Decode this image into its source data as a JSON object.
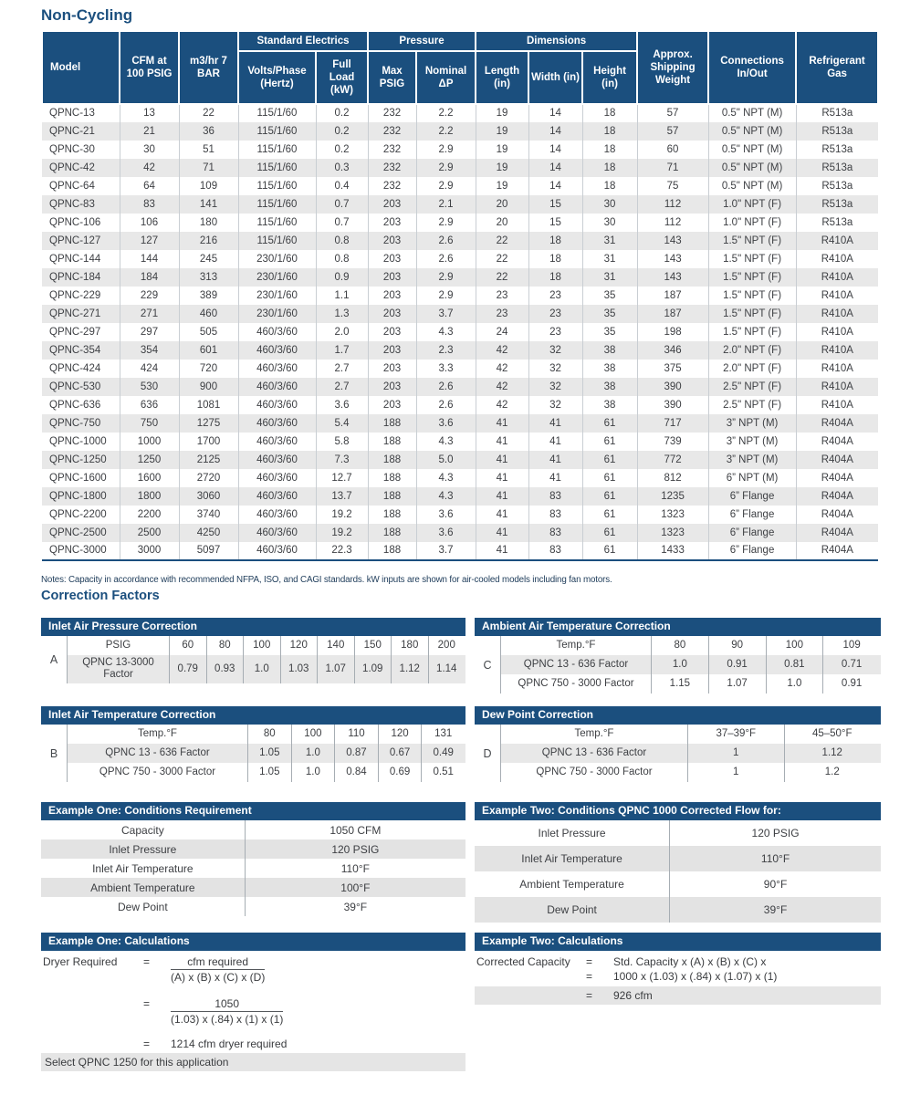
{
  "colors": {
    "navy": "#1b4f7e",
    "stripe": "#e8e8e8",
    "text": "#3e4044"
  },
  "page": {
    "title": "Non-Cycling",
    "correction_heading": "Correction Factors"
  },
  "main_table": {
    "column_groups": [
      {
        "label": "Standard Electrics"
      },
      {
        "label": "Pressure"
      },
      {
        "label": "Dimensions"
      }
    ],
    "columns": [
      "Model",
      "CFM at 100 PSIG",
      "m3/hr 7 BAR",
      "Volts/Phase (Hertz)",
      "Full Load (kW)",
      "Max PSIG",
      "Nominal ΔP",
      "Length (in)",
      "Width (in)",
      "Height (in)",
      "Approx. Shipping Weight",
      "Connections In/Out",
      "Refrigerant Gas"
    ],
    "rows": [
      [
        "QPNC-13",
        "13",
        "22",
        "115/1/60",
        "0.2",
        "232",
        "2.2",
        "19",
        "14",
        "18",
        "57",
        "0.5\" NPT (M)",
        "R513a"
      ],
      [
        "QPNC-21",
        "21",
        "36",
        "115/1/60",
        "0.2",
        "232",
        "2.2",
        "19",
        "14",
        "18",
        "57",
        "0.5\" NPT (M)",
        "R513a"
      ],
      [
        "QPNC-30",
        "30",
        "51",
        "115/1/60",
        "0.2",
        "232",
        "2.9",
        "19",
        "14",
        "18",
        "60",
        "0.5\" NPT (M)",
        "R513a"
      ],
      [
        "QPNC-42",
        "42",
        "71",
        "115/1/60",
        "0.3",
        "232",
        "2.9",
        "19",
        "14",
        "18",
        "71",
        "0.5\" NPT (M)",
        "R513a"
      ],
      [
        "QPNC-64",
        "64",
        "109",
        "115/1/60",
        "0.4",
        "232",
        "2.9",
        "19",
        "14",
        "18",
        "75",
        "0.5\" NPT (M)",
        "R513a"
      ],
      [
        "QPNC-83",
        "83",
        "141",
        "115/1/60",
        "0.7",
        "203",
        "2.1",
        "20",
        "15",
        "30",
        "112",
        "1.0\" NPT (F)",
        "R513a"
      ],
      [
        "QPNC-106",
        "106",
        "180",
        "115/1/60",
        "0.7",
        "203",
        "2.9",
        "20",
        "15",
        "30",
        "112",
        "1.0\" NPT (F)",
        "R513a"
      ],
      [
        "QPNC-127",
        "127",
        "216",
        "115/1/60",
        "0.8",
        "203",
        "2.6",
        "22",
        "18",
        "31",
        "143",
        "1.5\" NPT (F)",
        "R410A"
      ],
      [
        "QPNC-144",
        "144",
        "245",
        "230/1/60",
        "0.8",
        "203",
        "2.6",
        "22",
        "18",
        "31",
        "143",
        "1.5\" NPT (F)",
        "R410A"
      ],
      [
        "QPNC-184",
        "184",
        "313",
        "230/1/60",
        "0.9",
        "203",
        "2.9",
        "22",
        "18",
        "31",
        "143",
        "1.5\" NPT (F)",
        "R410A"
      ],
      [
        "QPNC-229",
        "229",
        "389",
        "230/1/60",
        "1.1",
        "203",
        "2.9",
        "23",
        "23",
        "35",
        "187",
        "1.5\" NPT (F)",
        "R410A"
      ],
      [
        "QPNC-271",
        "271",
        "460",
        "230/1/60",
        "1.3",
        "203",
        "3.7",
        "23",
        "23",
        "35",
        "187",
        "1.5\" NPT (F)",
        "R410A"
      ],
      [
        "QPNC-297",
        "297",
        "505",
        "460/3/60",
        "2.0",
        "203",
        "4.3",
        "24",
        "23",
        "35",
        "198",
        "1.5\" NPT (F)",
        "R410A"
      ],
      [
        "QPNC-354",
        "354",
        "601",
        "460/3/60",
        "1.7",
        "203",
        "2.3",
        "42",
        "32",
        "38",
        "346",
        "2.0\" NPT (F)",
        "R410A"
      ],
      [
        "QPNC-424",
        "424",
        "720",
        "460/3/60",
        "2.7",
        "203",
        "3.3",
        "42",
        "32",
        "38",
        "375",
        "2.0\" NPT (F)",
        "R410A"
      ],
      [
        "QPNC-530",
        "530",
        "900",
        "460/3/60",
        "2.7",
        "203",
        "2.6",
        "42",
        "32",
        "38",
        "390",
        "2.5\" NPT (F)",
        "R410A"
      ],
      [
        "QPNC-636",
        "636",
        "1081",
        "460/3/60",
        "3.6",
        "203",
        "2.6",
        "42",
        "32",
        "38",
        "390",
        "2.5\" NPT (F)",
        "R410A"
      ],
      [
        "QPNC-750",
        "750",
        "1275",
        "460/3/60",
        "5.4",
        "188",
        "3.6",
        "41",
        "41",
        "61",
        "717",
        "3” NPT (M)",
        "R404A"
      ],
      [
        "QPNC-1000",
        "1000",
        "1700",
        "460/3/60",
        "5.8",
        "188",
        "4.3",
        "41",
        "41",
        "61",
        "739",
        "3” NPT (M)",
        "R404A"
      ],
      [
        "QPNC-1250",
        "1250",
        "2125",
        "460/3/60",
        "7.3",
        "188",
        "5.0",
        "41",
        "41",
        "61",
        "772",
        "3” NPT (M)",
        "R404A"
      ],
      [
        "QPNC-1600",
        "1600",
        "2720",
        "460/3/60",
        "12.7",
        "188",
        "4.3",
        "41",
        "41",
        "61",
        "812",
        "6” NPT (M)",
        "R404A"
      ],
      [
        "QPNC-1800",
        "1800",
        "3060",
        "460/3/60",
        "13.7",
        "188",
        "4.3",
        "41",
        "83",
        "61",
        "1235",
        "6” Flange",
        "R404A"
      ],
      [
        "QPNC-2200",
        "2200",
        "3740",
        "460/3/60",
        "19.2",
        "188",
        "3.6",
        "41",
        "83",
        "61",
        "1323",
        "6” Flange",
        "R404A"
      ],
      [
        "QPNC-2500",
        "2500",
        "4250",
        "460/3/60",
        "19.2",
        "188",
        "3.6",
        "41",
        "83",
        "61",
        "1323",
        "6” Flange",
        "R404A"
      ],
      [
        "QPNC-3000",
        "3000",
        "5097",
        "460/3/60",
        "22.3",
        "188",
        "3.7",
        "41",
        "83",
        "61",
        "1433",
        "6” Flange",
        "R404A"
      ]
    ],
    "notes": "Notes: Capacity in accordance with recommended NFPA, ISO, and CAGI standards. kW inputs are shown for air-cooled models including fan motors."
  },
  "correction_tables": {
    "a": {
      "label": "A",
      "title": "Inlet Air Pressure Correction",
      "rows": [
        [
          "PSIG",
          "60",
          "80",
          "100",
          "120",
          "140",
          "150",
          "180",
          "200"
        ],
        [
          "QPNC 13-3000 Factor",
          "0.79",
          "0.93",
          "1.0",
          "1.03",
          "1.07",
          "1.09",
          "1.12",
          "1.14"
        ]
      ]
    },
    "b": {
      "label": "B",
      "title": "Inlet Air Temperature Correction",
      "rows": [
        [
          "Temp.°F",
          "80",
          "100",
          "110",
          "120",
          "131"
        ],
        [
          "QPNC 13 - 636 Factor",
          "1.05",
          "1.0",
          "0.87",
          "0.67",
          "0.49"
        ],
        [
          "QPNC 750 - 3000 Factor",
          "1.05",
          "1.0",
          "0.84",
          "0.69",
          "0.51"
        ]
      ]
    },
    "c": {
      "label": "C",
      "title": "Ambient Air Temperature Correction",
      "rows": [
        [
          "Temp.°F",
          "80",
          "90",
          "100",
          "109"
        ],
        [
          "QPNC 13 - 636 Factor",
          "1.0",
          "0.91",
          "0.81",
          "0.71"
        ],
        [
          "QPNC 750 - 3000 Factor",
          "1.15",
          "1.07",
          "1.0",
          "0.91"
        ]
      ]
    },
    "d": {
      "label": "D",
      "title": "Dew Point Correction",
      "rows": [
        [
          "Temp.°F",
          "37–39°F",
          "45–50°F"
        ],
        [
          "QPNC 13 - 636 Factor",
          "1",
          "1.12"
        ],
        [
          "QPNC 750 - 3000 Factor",
          "1",
          "1.2"
        ]
      ]
    }
  },
  "examples": {
    "one_conditions": {
      "title": "Example One: Conditions Requirement",
      "rows": [
        [
          "Capacity",
          "1050 CFM"
        ],
        [
          "Inlet Pressure",
          "120 PSIG"
        ],
        [
          "Inlet Air Temperature",
          "110°F"
        ],
        [
          "Ambient Temperature",
          "100°F"
        ],
        [
          "Dew Point",
          "39°F"
        ]
      ]
    },
    "two_conditions": {
      "title": "Example Two: Conditions QPNC 1000 Corrected Flow for:",
      "rows": [
        [
          "Inlet Pressure",
          "120 PSIG"
        ],
        [
          "Inlet Air Temperature",
          "110°F"
        ],
        [
          "Ambient Temperature",
          "90°F"
        ],
        [
          "Dew Point",
          "39°F"
        ]
      ]
    },
    "one_calc": {
      "title": "Example One: Calculations",
      "lhs": "Dryer Required",
      "eq": "=",
      "frac1_num": "cfm required",
      "frac1_den": "(A) x (B) x (C) x (D)",
      "frac2_num": "1050",
      "frac2_den": "(1.03) x (.84) x (1) x (1)",
      "result": "1214 cfm dryer required",
      "select_note": "Select QPNC 1250 for this application"
    },
    "two_calc": {
      "title": "Example Two: Calculations",
      "lhs": "Corrected Capacity",
      "eq": "=",
      "line1": "Std. Capacity x (A) x (B) x (C) x",
      "line2": "1000 x (1.03) x (.84) x (1.07) x (1)",
      "result": "926 cfm"
    }
  }
}
